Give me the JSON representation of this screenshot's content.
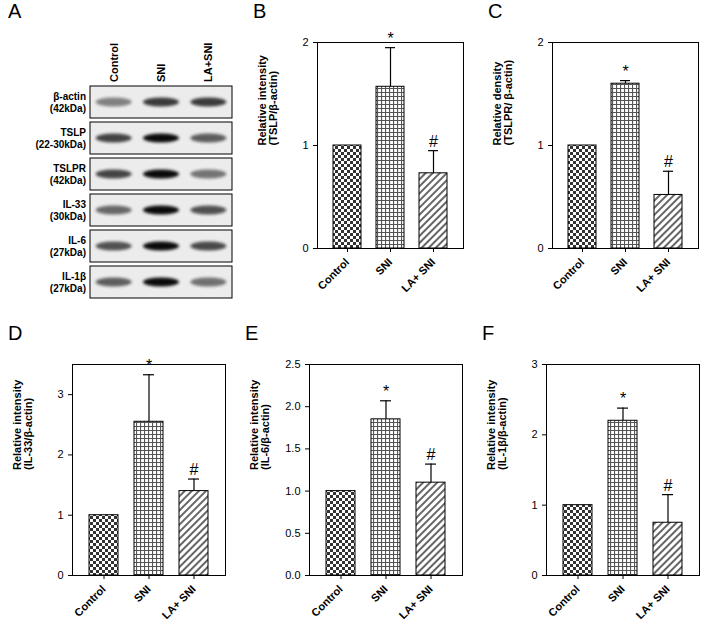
{
  "chart_data": [
    {
      "type": "bar",
      "title": "B",
      "ylabel": "Relative intensity\n(TSLP/β-actin)",
      "categories": [
        "Control",
        "SNI",
        "LA+ SNI"
      ],
      "values": [
        1,
        1.57,
        0.73
      ],
      "errors": [
        0,
        0.38,
        0.22
      ],
      "annotations": [
        null,
        "*",
        "#"
      ],
      "colors": [
        "#333333",
        "#555555",
        "#666666"
      ],
      "ylim": [
        0,
        2
      ],
      "yticks": [
        0,
        1,
        2
      ]
    },
    {
      "type": "bar",
      "title": "C",
      "ylabel": "Relative density\n(TSLPR/ β-actin)",
      "categories": [
        "Control",
        "SNI",
        "LA+ SNI"
      ],
      "values": [
        1,
        1.6,
        0.52
      ],
      "errors": [
        0,
        0.03,
        0.23
      ],
      "annotations": [
        null,
        "*",
        "#"
      ],
      "colors": [
        "#333333",
        "#555555",
        "#666666"
      ],
      "ylim": [
        0,
        2
      ],
      "yticks": [
        0,
        1,
        2
      ]
    },
    {
      "type": "bar",
      "title": "D",
      "ylabel": "Relative intensity\n(IL-33/β-actin)",
      "categories": [
        "Control",
        "SNI",
        "LA+ SNI"
      ],
      "values": [
        1,
        2.55,
        1.4
      ],
      "errors": [
        0,
        0.78,
        0.2
      ],
      "annotations": [
        null,
        "*",
        "#"
      ],
      "colors": [
        "#333333",
        "#555555",
        "#666666"
      ],
      "ylim": [
        0,
        3.5
      ],
      "yticks": [
        0,
        1,
        2,
        3
      ]
    },
    {
      "type": "bar",
      "title": "E",
      "ylabel": "Relative intensity\n(IL-6/β-actin)",
      "categories": [
        "Control",
        "SNI",
        "LA+ SNI"
      ],
      "values": [
        1,
        1.85,
        1.1
      ],
      "errors": [
        0,
        0.22,
        0.22
      ],
      "annotations": [
        null,
        "*",
        "#"
      ],
      "colors": [
        "#333333",
        "#555555",
        "#666666"
      ],
      "ylim": [
        0,
        2.5
      ],
      "yticks": [
        {
          "value": 0,
          "label": "0.0"
        },
        {
          "value": 0.5,
          "label": "0.5"
        },
        {
          "value": 1,
          "label": "1.0"
        },
        {
          "value": 1.5,
          "label": "1.5"
        },
        {
          "value": 2,
          "label": "2.0"
        },
        {
          "value": 2.5,
          "label": "2.5"
        }
      ]
    },
    {
      "type": "bar",
      "title": "F",
      "ylabel": "Relative intensity\n(IL-1β/β-actin)",
      "categories": [
        "Control",
        "SNI",
        "LA+ SNI"
      ],
      "values": [
        1,
        2.2,
        0.75
      ],
      "errors": [
        0,
        0.18,
        0.4
      ],
      "annotations": [
        null,
        "*",
        "#"
      ],
      "colors": [
        "#333333",
        "#555555",
        "#666666"
      ],
      "ylim": [
        0,
        3
      ],
      "yticks": [
        0,
        1,
        2,
        3
      ]
    }
  ],
  "blot": {
    "title": "A",
    "lanes": [
      "Control",
      "SNI",
      "LA+SNI"
    ],
    "rows": [
      {
        "name": "β-actin",
        "size": "(42kDa)"
      },
      {
        "name": "TSLP",
        "size": "(22-30kDa)"
      },
      {
        "name": "TSLPR",
        "size": "(42kDa)"
      },
      {
        "name": "IL-33",
        "size": "(30kDa)"
      },
      {
        "name": "IL-6",
        "size": "(27kDa)"
      },
      {
        "name": "IL-1β",
        "size": "(27kDa)"
      }
    ]
  }
}
